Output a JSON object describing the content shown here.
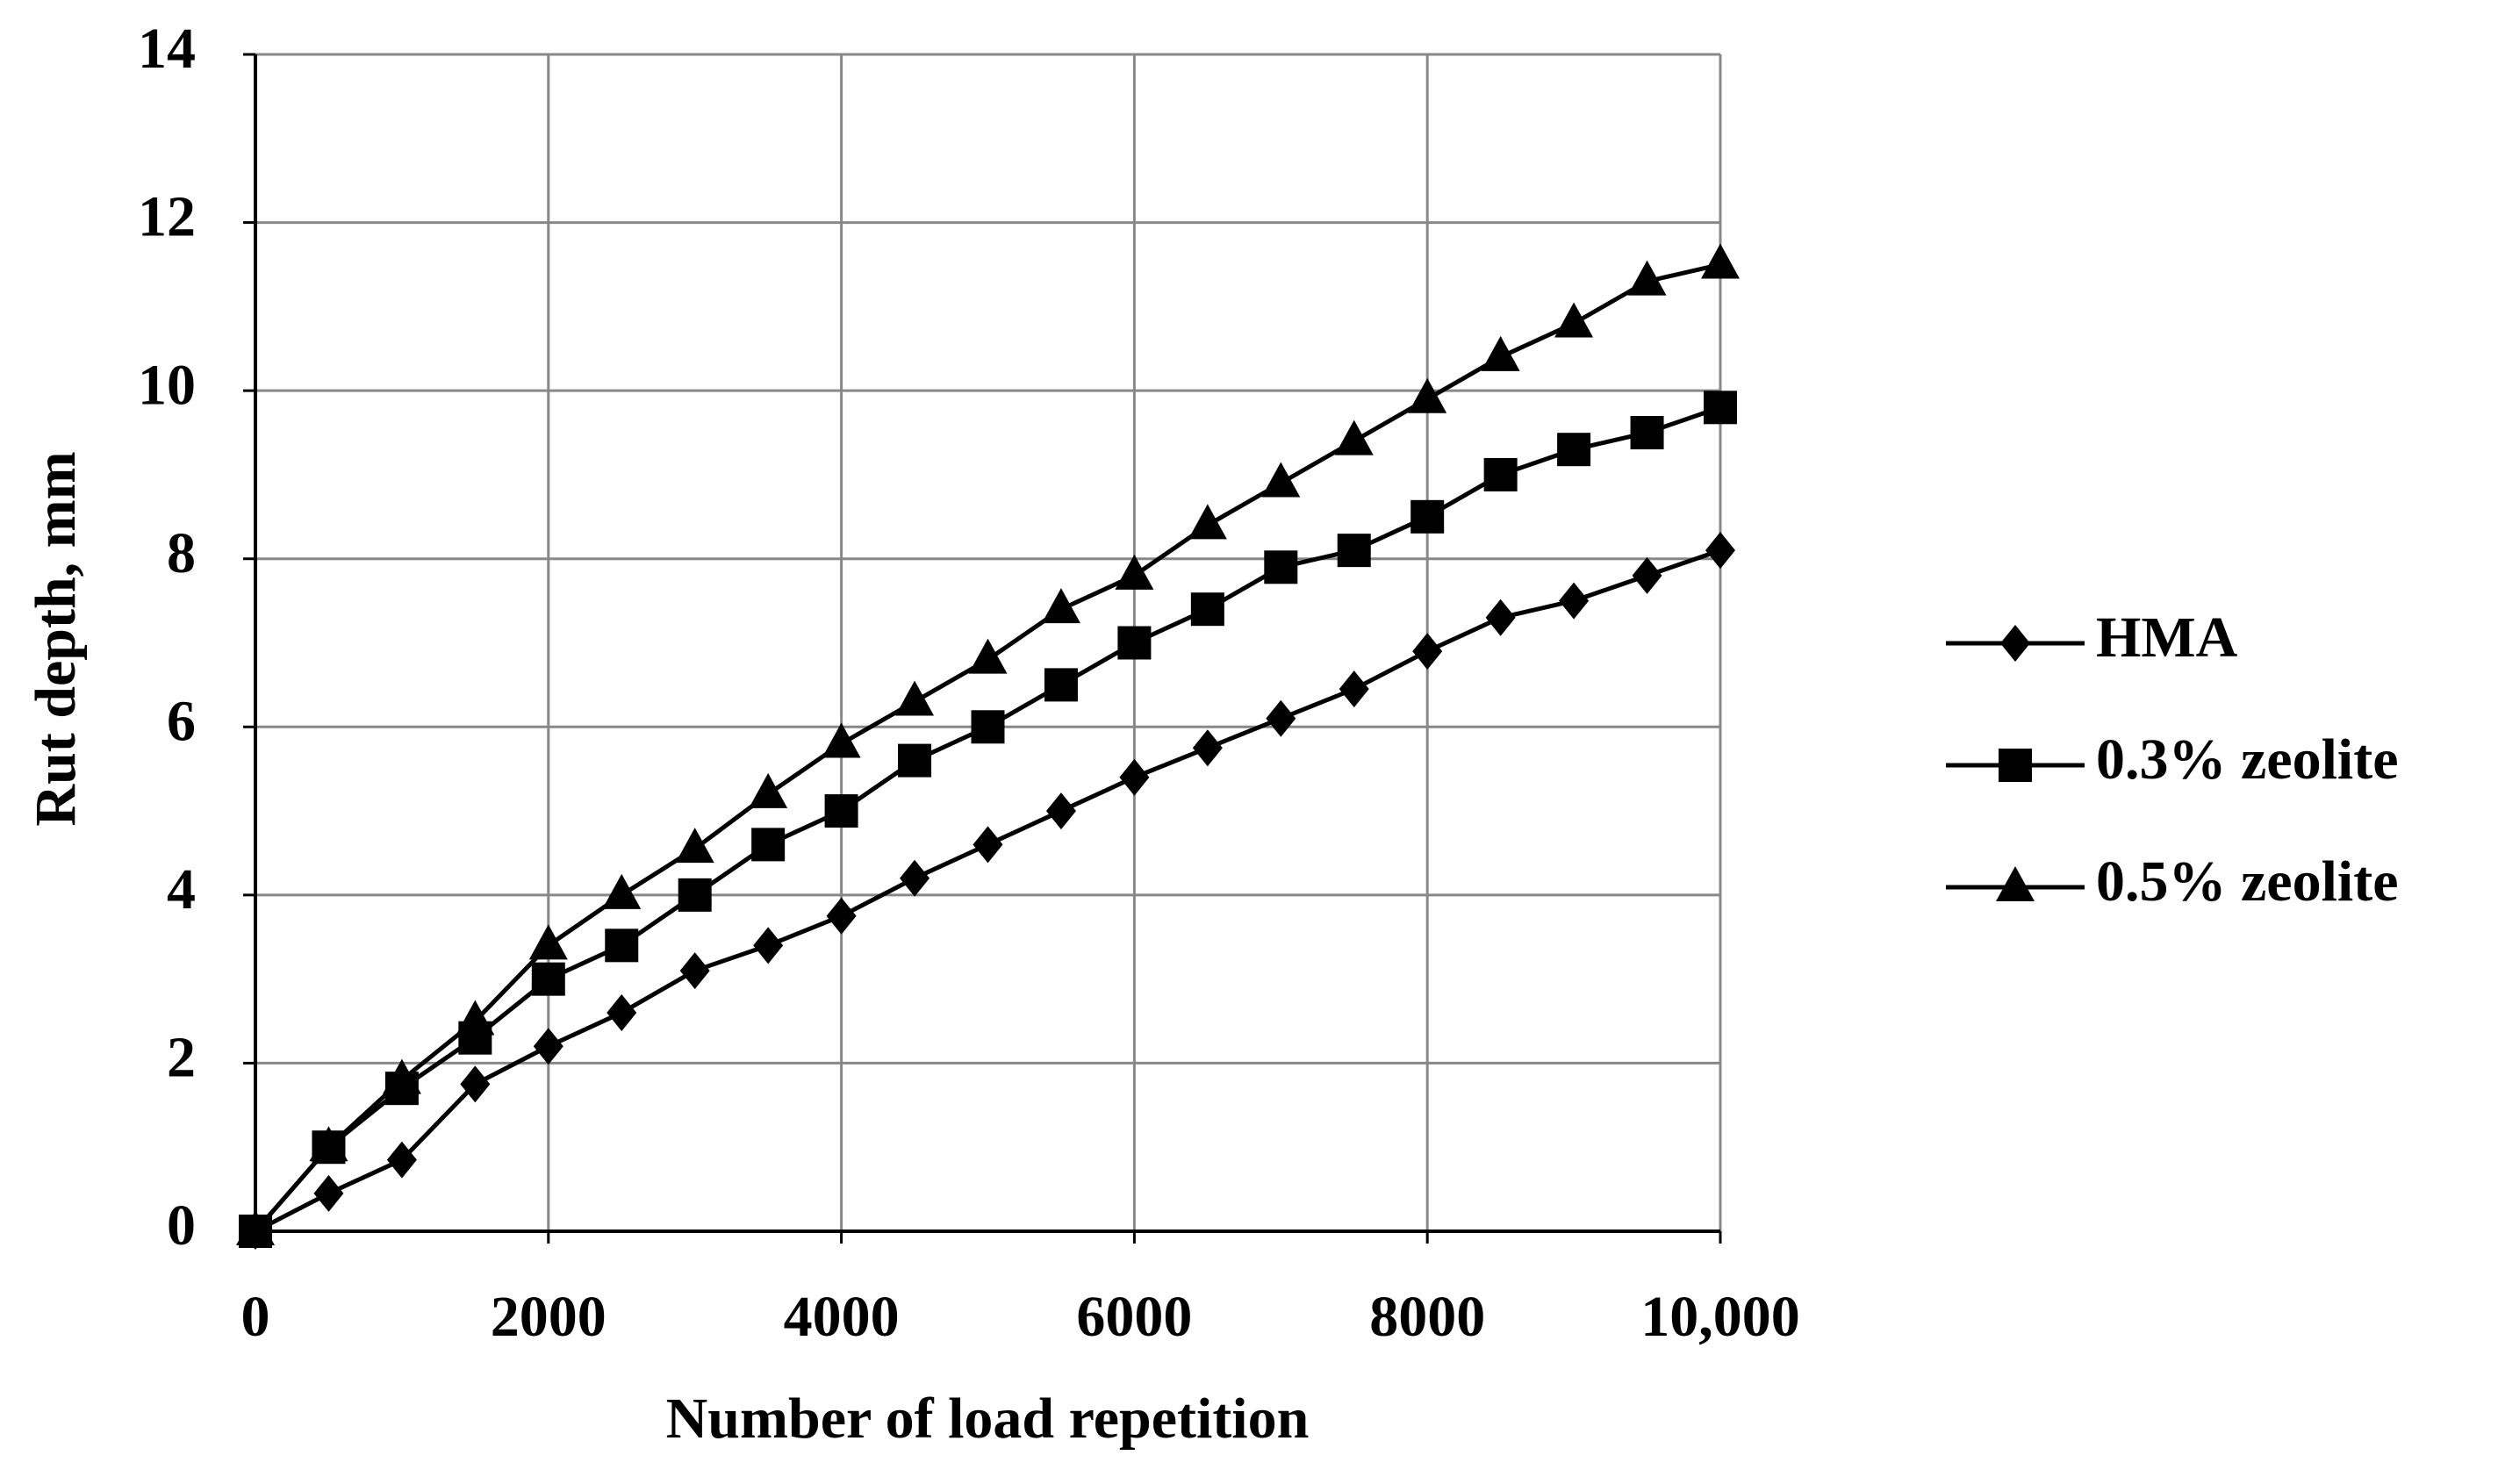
{
  "chart_data": {
    "type": "line",
    "x_label": "Number of load repetition",
    "y_label": "Rut depth, mm",
    "x": [
      0,
      500,
      1000,
      1500,
      2000,
      2500,
      3000,
      3500,
      4000,
      4500,
      5000,
      5500,
      6000,
      6500,
      7000,
      7500,
      8000,
      8500,
      9000,
      9500,
      10000
    ],
    "series": [
      {
        "name": "HMA",
        "color": "#000000",
        "marker": "diamond",
        "values": [
          0,
          0.45,
          0.85,
          1.75,
          2.2,
          2.6,
          3.1,
          3.4,
          3.75,
          4.2,
          4.6,
          5.0,
          5.4,
          5.75,
          6.1,
          6.45,
          6.9,
          7.3,
          7.5,
          7.8,
          8.1
        ]
      },
      {
        "name": "0.3% zeolite",
        "color": "#000000",
        "marker": "square",
        "values": [
          0,
          1.0,
          1.7,
          2.3,
          3.0,
          3.4,
          4.0,
          4.6,
          5.0,
          5.6,
          6.0,
          6.5,
          7.0,
          7.4,
          7.9,
          8.1,
          8.5,
          9.0,
          9.3,
          9.5,
          9.8
        ]
      },
      {
        "name": "0.5% zeolite",
        "color": "#000000",
        "marker": "triangle",
        "values": [
          0,
          1.0,
          1.8,
          2.5,
          3.4,
          4.0,
          4.55,
          5.2,
          5.8,
          6.3,
          6.8,
          7.4,
          7.8,
          8.4,
          8.9,
          9.4,
          9.9,
          10.4,
          10.8,
          11.3,
          11.5
        ]
      }
    ],
    "xlim": [
      0,
      10000
    ],
    "xticks": [
      0,
      2000,
      4000,
      6000,
      8000,
      {
        "value": 10000,
        "label": "10,000"
      }
    ],
    "ylim": [
      0,
      14
    ],
    "yticks": [
      0,
      2,
      4,
      6,
      8,
      10,
      12,
      14
    ],
    "grid": true,
    "legend": "right"
  }
}
